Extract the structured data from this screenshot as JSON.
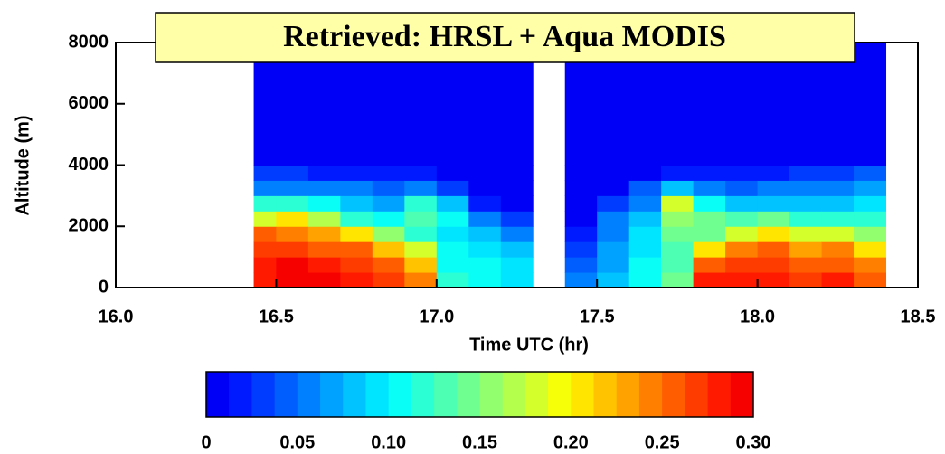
{
  "chart_data": {
    "type": "heatmap",
    "annotation": "Retrieved: HRSL + Aqua MODIS",
    "xlabel": "Time UTC (hr)",
    "ylabel": "Altitude (m)",
    "xlim": [
      16.0,
      18.5
    ],
    "xticks": [
      {
        "value": 16,
        "label": "16.0"
      },
      16.5,
      {
        "value": 17,
        "label": "17.0"
      },
      17.5,
      {
        "value": 18,
        "label": "18.0"
      },
      18.5
    ],
    "ylim": [
      0,
      8000
    ],
    "yticks": [
      0,
      2000,
      4000,
      6000,
      8000
    ],
    "x_bins": [
      16.43,
      16.5,
      16.6,
      16.7,
      16.8,
      16.9,
      17.0,
      17.1,
      17.2,
      17.3,
      17.4,
      17.5,
      17.6,
      17.7,
      17.8,
      17.9,
      18.0,
      18.1,
      18.2,
      18.3,
      18.4
    ],
    "y_bins": [
      0,
      500,
      1000,
      1500,
      2000,
      2500,
      3000,
      3500,
      4000,
      8000
    ],
    "z": [
      [
        0.28,
        0.28,
        0.27,
        0.25,
        0.18,
        0.12,
        0.06,
        0.03,
        0
      ],
      [
        0.3,
        0.29,
        0.27,
        0.24,
        0.2,
        0.12,
        0.06,
        0.03,
        0
      ],
      [
        0.29,
        0.28,
        0.26,
        0.23,
        0.17,
        0.1,
        0.06,
        0.02,
        0
      ],
      [
        0.28,
        0.27,
        0.25,
        0.2,
        0.12,
        0.08,
        0.05,
        0.02,
        0
      ],
      [
        0.27,
        0.26,
        0.22,
        0.15,
        0.1,
        0.07,
        0.04,
        0.02,
        0
      ],
      [
        0.24,
        0.22,
        0.18,
        0.12,
        0.13,
        0.12,
        0.05,
        0.02,
        0
      ],
      [
        0.12,
        0.11,
        0.1,
        0.09,
        0.1,
        0.08,
        0.03,
        0.01,
        0
      ],
      [
        0.1,
        0.1,
        0.09,
        0.08,
        0.06,
        0.02,
        0.01,
        0,
        0
      ],
      [
        0.09,
        0.09,
        0.08,
        0.06,
        0.03,
        0.01,
        0,
        0,
        0
      ],
      [
        null,
        null,
        null,
        null,
        null,
        null,
        null,
        null,
        null
      ],
      [
        0.05,
        0.04,
        0.03,
        0.02,
        0.01,
        0.01,
        0,
        0,
        0
      ],
      [
        0.08,
        0.07,
        0.07,
        0.06,
        0.05,
        0.03,
        0.01,
        0,
        0
      ],
      [
        0.1,
        0.1,
        0.09,
        0.09,
        0.08,
        0.06,
        0.04,
        0.01,
        0
      ],
      [
        0.14,
        0.13,
        0.13,
        0.14,
        0.15,
        0.18,
        0.08,
        0.02,
        0
      ],
      [
        0.28,
        0.26,
        0.2,
        0.14,
        0.14,
        0.1,
        0.06,
        0.02,
        0
      ],
      [
        0.28,
        0.27,
        0.24,
        0.18,
        0.13,
        0.08,
        0.04,
        0.02,
        0
      ],
      [
        0.28,
        0.27,
        0.25,
        0.2,
        0.14,
        0.08,
        0.05,
        0.02,
        0
      ],
      [
        0.27,
        0.26,
        0.23,
        0.18,
        0.12,
        0.08,
        0.05,
        0.03,
        0
      ],
      [
        0.28,
        0.26,
        0.24,
        0.18,
        0.12,
        0.08,
        0.06,
        0.03,
        0
      ],
      [
        0.26,
        0.24,
        0.2,
        0.15,
        0.12,
        0.09,
        0.07,
        0.04,
        0
      ]
    ],
    "colorbar_lim": [
      0,
      0.3
    ],
    "colorbar_ticks": [
      0,
      0.05,
      {
        "value": 0.1,
        "label": "0.10"
      },
      0.15,
      {
        "value": 0.2,
        "label": "0.20"
      },
      0.25,
      {
        "value": 0.3,
        "label": "0.30"
      }
    ],
    "colorbar_levels": 24,
    "colormap": "jet"
  }
}
